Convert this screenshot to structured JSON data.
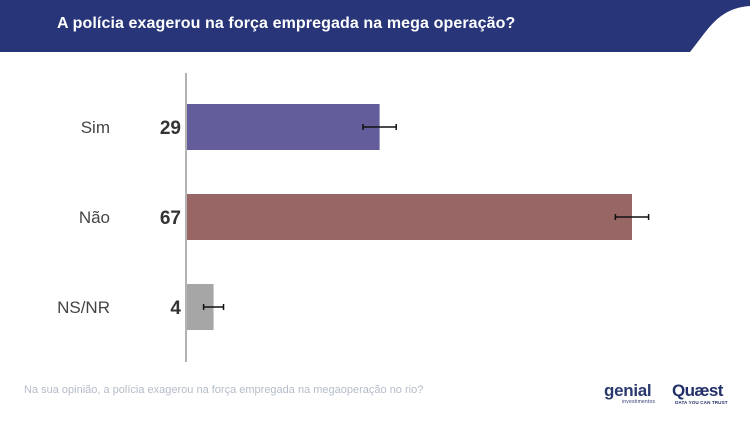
{
  "header": {
    "title": "A polícia exagerou na força empregada na mega operação?",
    "background_color": "#283679"
  },
  "chart_data": {
    "type": "bar",
    "orientation": "horizontal",
    "categories": [
      "Sim",
      "Não",
      "NS/NR"
    ],
    "values": [
      29,
      67,
      4
    ],
    "data_labels": [
      "29",
      "67",
      "4"
    ],
    "error_bars": [
      2.5,
      2.5,
      1.5
    ],
    "colors": [
      "#635d9b",
      "#986664",
      "#a6a6a6"
    ],
    "xlim": [
      0,
      70
    ],
    "grid": false,
    "legend": "none",
    "title": "",
    "xlabel": "",
    "ylabel": ""
  },
  "footnote": "Na sua opinião, a polícia exagerou na força empregada na megaoperação no rio?",
  "logos": {
    "genial": {
      "name": "genial",
      "subtitle": "investimentos"
    },
    "quaest": {
      "name": "Quæst",
      "tagline": "DATA YOU CAN TRUST"
    }
  }
}
